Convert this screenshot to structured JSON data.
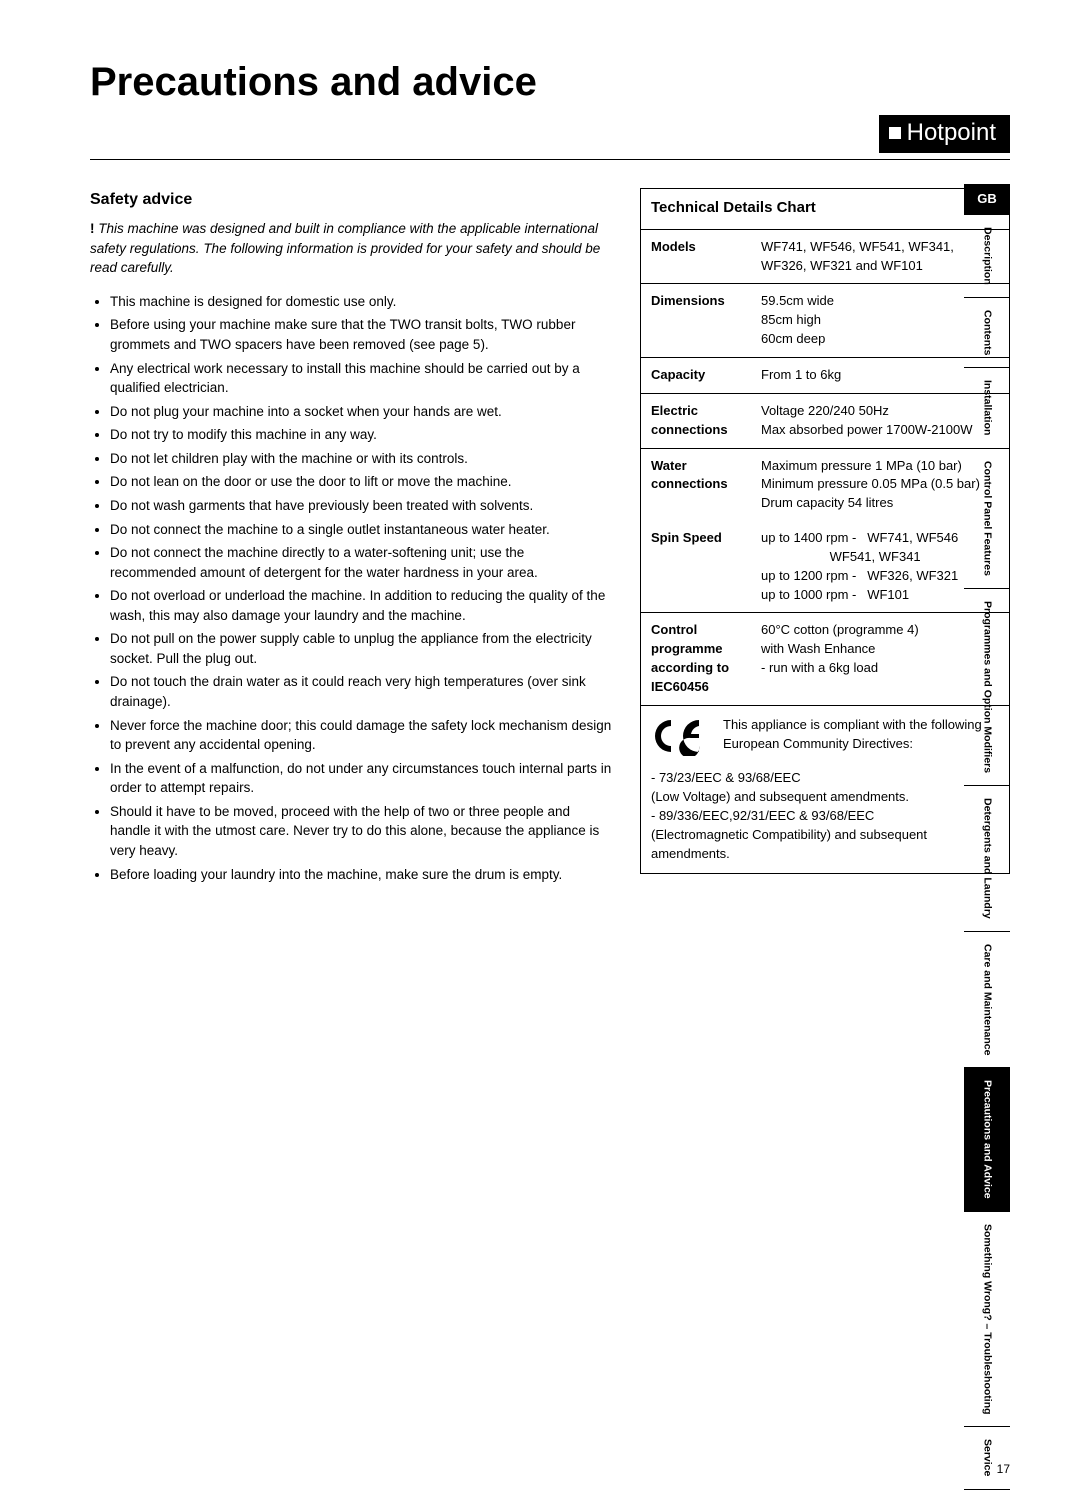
{
  "page": {
    "title": "Precautions and advice",
    "brand": "Hotpoint",
    "pageNumber": "17"
  },
  "safety": {
    "heading": "Safety advice",
    "intro_bang": "!",
    "intro": " This machine was designed and built in compliance with the applicable international safety regulations. The following information is provided for your safety and should be read carefully.",
    "bullets": [
      "This machine is designed for domestic use only.",
      "Before using your machine make sure that the TWO transit bolts, TWO rubber grommets and TWO spacers have been removed (see page 5).",
      "Any electrical work necessary to install this machine should be carried out by a qualified electrician.",
      "Do not plug your machine into a socket when your hands are wet.",
      "Do not try to modify this machine in any way.",
      "Do not let children play with the machine or with its controls.",
      "Do not lean on the door or use the door to lift or move the machine.",
      "Do not wash garments that have previously been treated with solvents.",
      "Do not connect the machine to a single outlet instantaneous water heater.",
      "Do not connect the machine directly to a water-softening unit; use the recommended amount of detergent for the water hardness in your area.",
      "Do not overload or underload the machine.  In addition to reducing the quality of the wash, this may also damage your laundry and the machine.",
      "Do not pull on the power supply cable to unplug the appliance from the electricity socket.  Pull the plug out.",
      "Do not touch the drain water as it could reach very high temperatures (over sink drainage).",
      "Never force the machine door; this could damage the safety lock mechanism design to prevent any accidental opening.",
      "In the event of a malfunction, do not under any circumstances touch internal parts in order to attempt repairs.",
      "Should it have to be moved, proceed with the help of two or three people and handle it with the utmost care. Never try to do this alone, because the appliance is very heavy.",
      "Before loading your laundry into the machine, make sure the drum is empty."
    ]
  },
  "tech": {
    "title": "Technical Details Chart",
    "rows": [
      {
        "label": "Models",
        "value": "WF741, WF546, WF541, WF341, WF326, WF321 and WF101"
      },
      {
        "label": "Dimensions",
        "value": "59.5cm wide\n85cm high\n60cm deep"
      },
      {
        "label": "Capacity",
        "value": "From 1 to 6kg"
      },
      {
        "label": "Electric connections",
        "value": "Voltage 220/240 50Hz\nMax absorbed power 1700W-2100W"
      },
      {
        "label": "Water connections",
        "value": "Maximum pressure 1 MPa (10 bar)\nMinimum pressure 0.05 MPa (0.5 bar)\nDrum capacity 54 litres"
      }
    ],
    "spin": {
      "label": "Spin Speed",
      "lines": [
        "up to 1400 rpm -   WF741, WF546",
        "                   WF541, WF341",
        "up to 1200 rpm -   WF326, WF321",
        "up to 1000 rpm -   WF101"
      ]
    },
    "control": {
      "label": "Control programme according to IEC60456",
      "value": "60°C cotton (programme 4)\nwith Wash Enhance\n- run with a 6kg load"
    },
    "ce": {
      "mark": "CE",
      "intro": "This appliance is compliant with the following European Community Directives:",
      "lines": [
        "- 73/23/EEC & 93/68/EEC",
        "(Low Voltage) and subsequent amendments.",
        "- 89/336/EEC,92/31/EEC & 93/68/EEC",
        "(Electromagnetic Compatibility) and subsequent amendments."
      ]
    }
  },
  "tabs": {
    "gb": "GB",
    "items": [
      "Description",
      "Contents",
      "Installation",
      "Control Panel Features",
      "Programmes and Option Modifiers",
      "Detergents and Laundry",
      "Care and Maintenance",
      "Precautions and Advice",
      "Something Wrong? – Troubleshooting",
      "Service"
    ],
    "activeIndex": 7
  }
}
